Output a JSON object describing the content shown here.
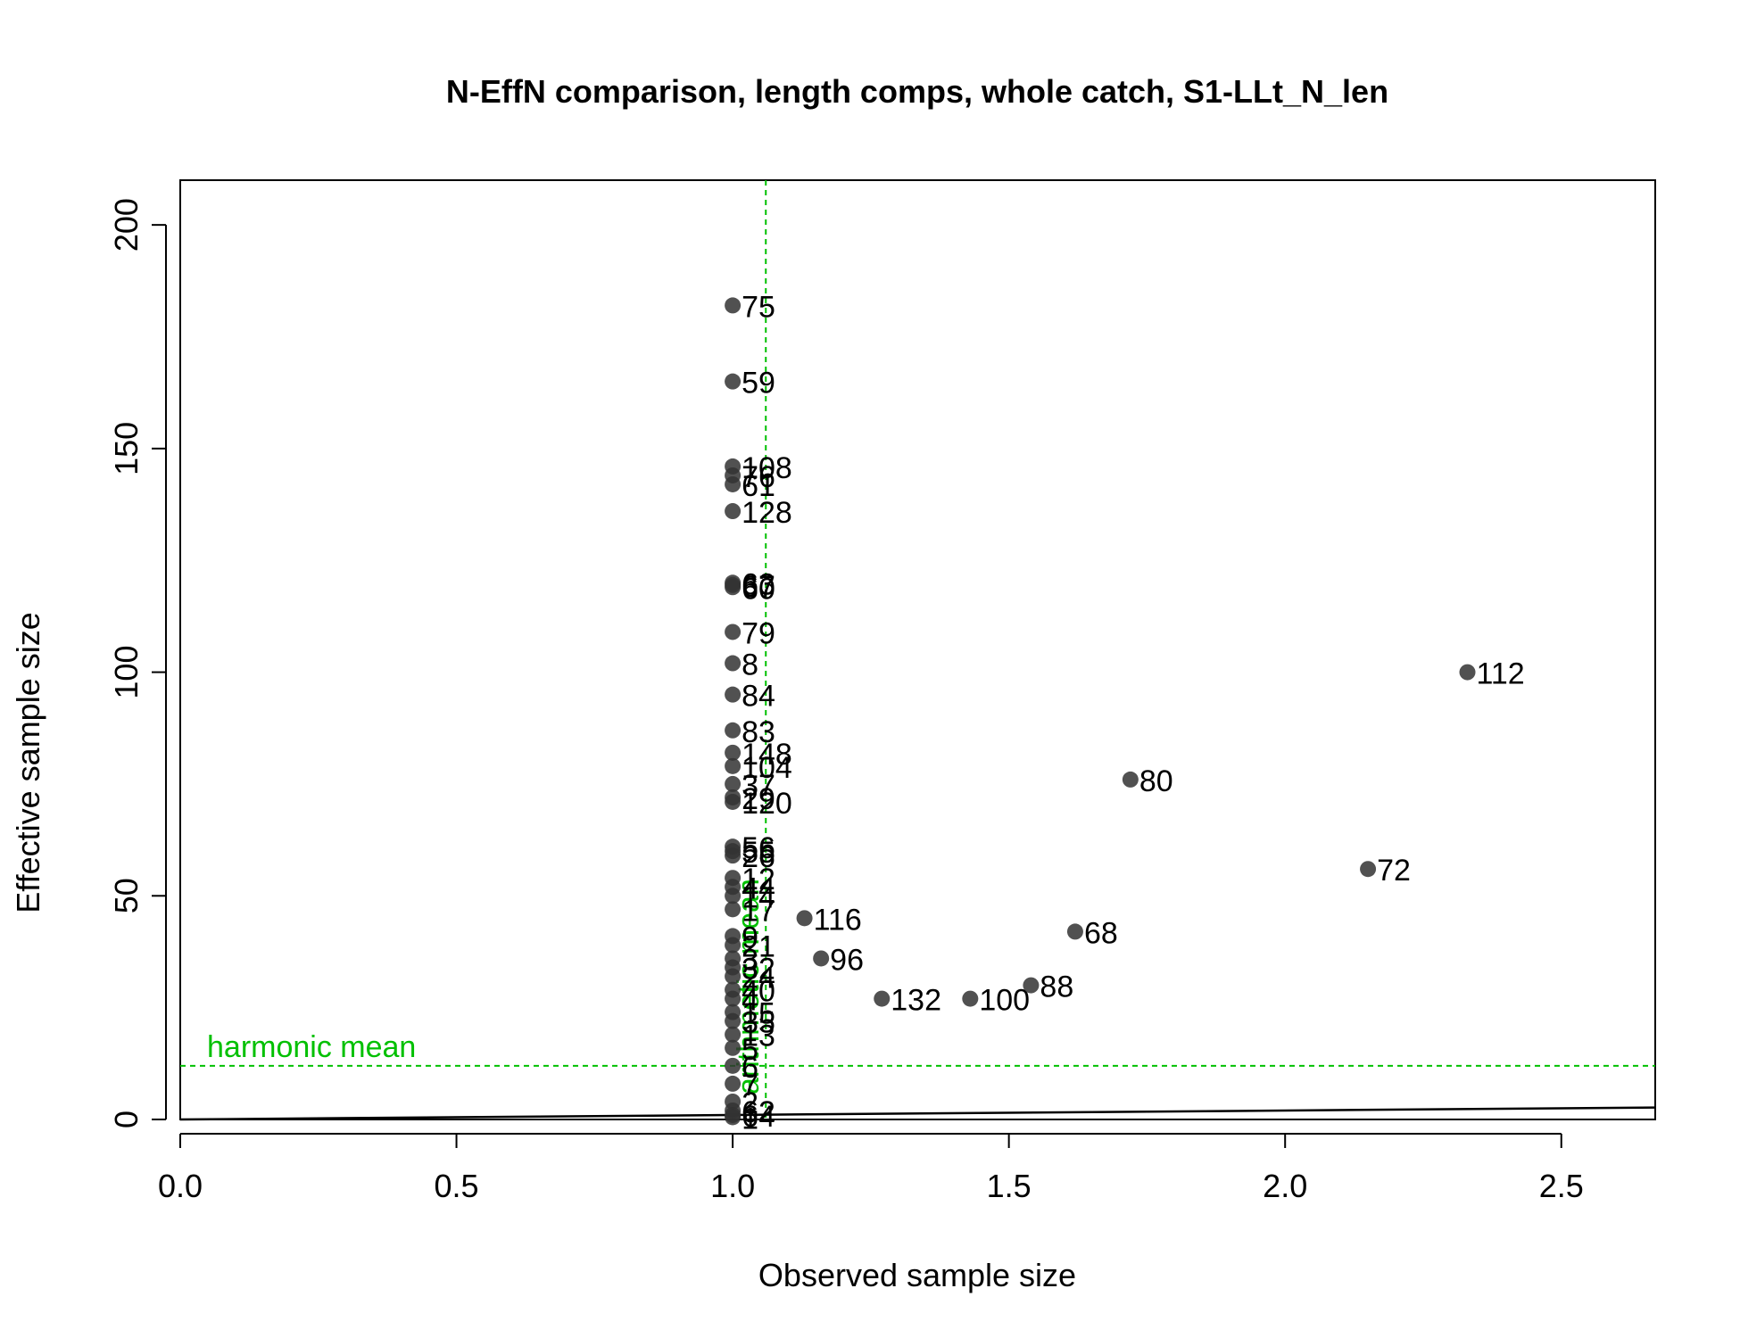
{
  "chart_data": {
    "type": "scatter",
    "title": "N-EffN comparison, length comps, whole catch, S1-LLt_N_len",
    "xlabel": "Observed sample size",
    "ylabel": "Effective sample size",
    "xlim": [
      0,
      2.67
    ],
    "ylim": [
      0,
      210
    ],
    "xticks": [
      "0.0",
      "0.5",
      "1.0",
      "1.5",
      "2.0",
      "2.5"
    ],
    "yticks": [
      "0",
      "50",
      "100",
      "150",
      "200"
    ],
    "grid": false,
    "point_color": "#333333",
    "reference_color": "#00c000",
    "reference_lines": [
      {
        "label": "harmonic mean",
        "orientation": "horizontal",
        "value": 12
      },
      {
        "label": "arithmetic mean",
        "orientation": "vertical",
        "value": 1.06
      }
    ],
    "one_to_one_line": {
      "from": [
        0,
        0
      ],
      "to": [
        2.67,
        2.67
      ]
    },
    "points": [
      {
        "x": 1.0,
        "y": 182,
        "label": "75"
      },
      {
        "x": 1.0,
        "y": 165,
        "label": "59"
      },
      {
        "x": 1.0,
        "y": 146,
        "label": "108"
      },
      {
        "x": 1.0,
        "y": 144,
        "label": "76"
      },
      {
        "x": 1.0,
        "y": 142,
        "label": "61"
      },
      {
        "x": 1.0,
        "y": 136,
        "label": "128"
      },
      {
        "x": 1.0,
        "y": 120,
        "label": "63"
      },
      {
        "x": 1.0,
        "y": 119.5,
        "label": "67"
      },
      {
        "x": 1.0,
        "y": 119,
        "label": "60"
      },
      {
        "x": 1.0,
        "y": 109,
        "label": "79"
      },
      {
        "x": 1.0,
        "y": 102,
        "label": "8"
      },
      {
        "x": 1.0,
        "y": 95,
        "label": "84"
      },
      {
        "x": 1.0,
        "y": 87,
        "label": "83"
      },
      {
        "x": 1.0,
        "y": 82,
        "label": "148"
      },
      {
        "x": 1.0,
        "y": 79,
        "label": "104"
      },
      {
        "x": 1.0,
        "y": 75,
        "label": "37"
      },
      {
        "x": 1.0,
        "y": 72,
        "label": "29"
      },
      {
        "x": 1.0,
        "y": 71,
        "label": "120"
      },
      {
        "x": 1.0,
        "y": 61,
        "label": "56"
      },
      {
        "x": 1.0,
        "y": 60,
        "label": "55"
      },
      {
        "x": 1.0,
        "y": 59,
        "label": "26"
      },
      {
        "x": 1.0,
        "y": 54,
        "label": "12"
      },
      {
        "x": 1.0,
        "y": 52,
        "label": "44"
      },
      {
        "x": 1.0,
        "y": 50,
        "label": "14"
      },
      {
        "x": 1.0,
        "y": 47,
        "label": "17"
      },
      {
        "x": 1.0,
        "y": 41,
        "label": "9"
      },
      {
        "x": 1.0,
        "y": 39,
        "label": "21"
      },
      {
        "x": 1.0,
        "y": 36,
        "label": "3"
      },
      {
        "x": 1.0,
        "y": 34,
        "label": "32"
      },
      {
        "x": 1.0,
        "y": 32,
        "label": "24"
      },
      {
        "x": 1.0,
        "y": 29,
        "label": "40"
      },
      {
        "x": 1.0,
        "y": 27,
        "label": "4"
      },
      {
        "x": 1.0,
        "y": 24,
        "label": "15"
      },
      {
        "x": 1.0,
        "y": 22,
        "label": "35"
      },
      {
        "x": 1.0,
        "y": 19,
        "label": "13"
      },
      {
        "x": 1.0,
        "y": 16,
        "label": "5"
      },
      {
        "x": 1.0,
        "y": 12,
        "label": "6"
      },
      {
        "x": 1.0,
        "y": 8,
        "label": "7"
      },
      {
        "x": 1.0,
        "y": 4,
        "label": "2"
      },
      {
        "x": 1.0,
        "y": 2,
        "label": "62"
      },
      {
        "x": 1.0,
        "y": 1,
        "label": "64"
      },
      {
        "x": 1.0,
        "y": 0.5,
        "label": "1"
      },
      {
        "x": 1.13,
        "y": 45,
        "label": "116"
      },
      {
        "x": 1.16,
        "y": 36,
        "label": "96"
      },
      {
        "x": 1.27,
        "y": 27,
        "label": "132"
      },
      {
        "x": 1.43,
        "y": 27,
        "label": "100"
      },
      {
        "x": 1.54,
        "y": 30,
        "label": "88"
      },
      {
        "x": 1.62,
        "y": 42,
        "label": "68"
      },
      {
        "x": 1.72,
        "y": 76,
        "label": "80"
      },
      {
        "x": 2.15,
        "y": 56,
        "label": "72"
      },
      {
        "x": 2.33,
        "y": 100,
        "label": "112"
      }
    ]
  }
}
